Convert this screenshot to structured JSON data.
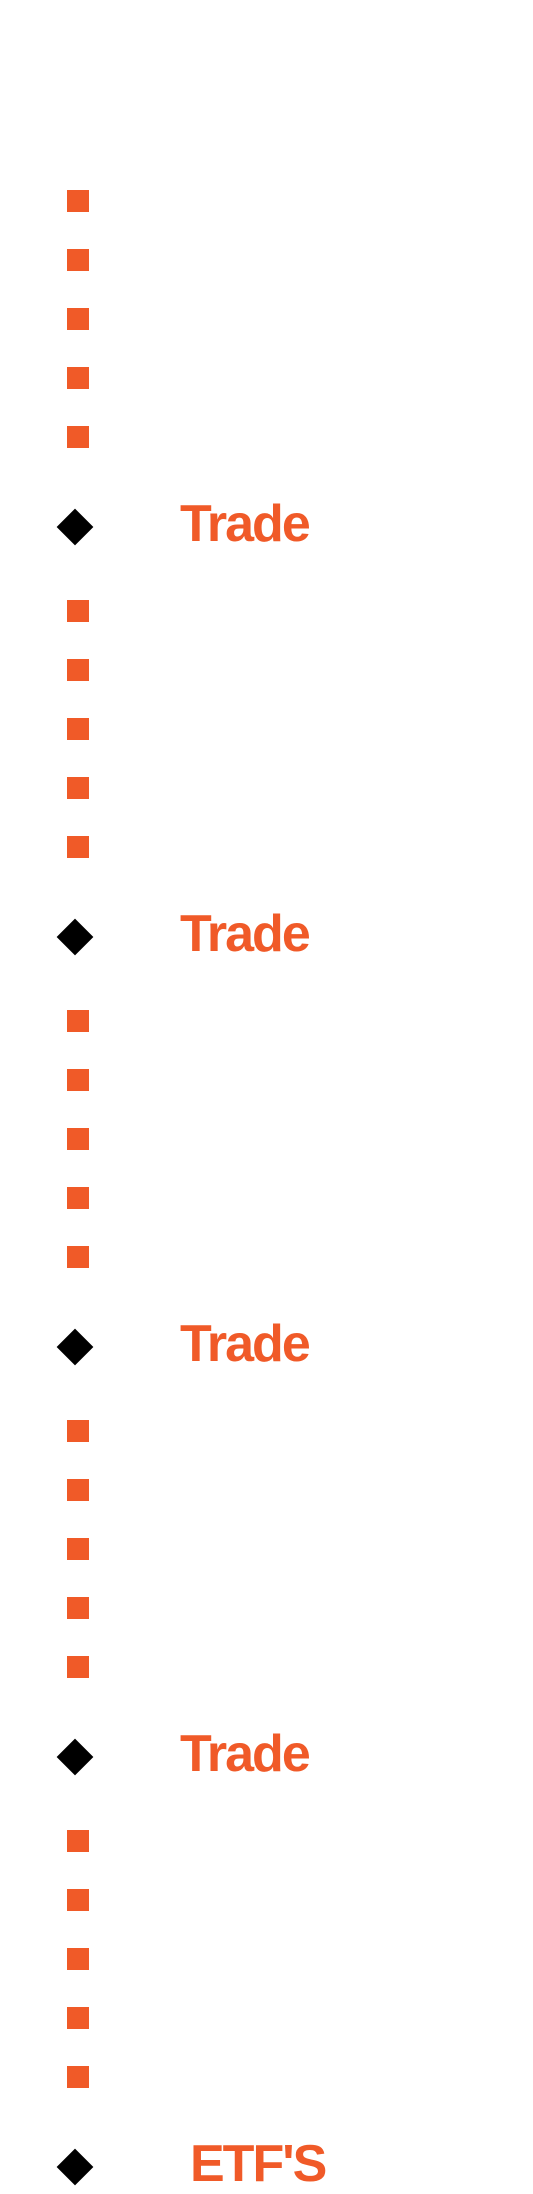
{
  "colors": {
    "accent": "#f05a28",
    "marker": "#000000"
  },
  "sections": [
    {
      "label": "Trade",
      "square_count": 5
    },
    {
      "label": "Trade",
      "square_count": 5
    },
    {
      "label": "Trade",
      "square_count": 5
    },
    {
      "label": "Trade",
      "square_count": 5
    },
    {
      "label": "ETF'S",
      "square_count": 5
    }
  ]
}
